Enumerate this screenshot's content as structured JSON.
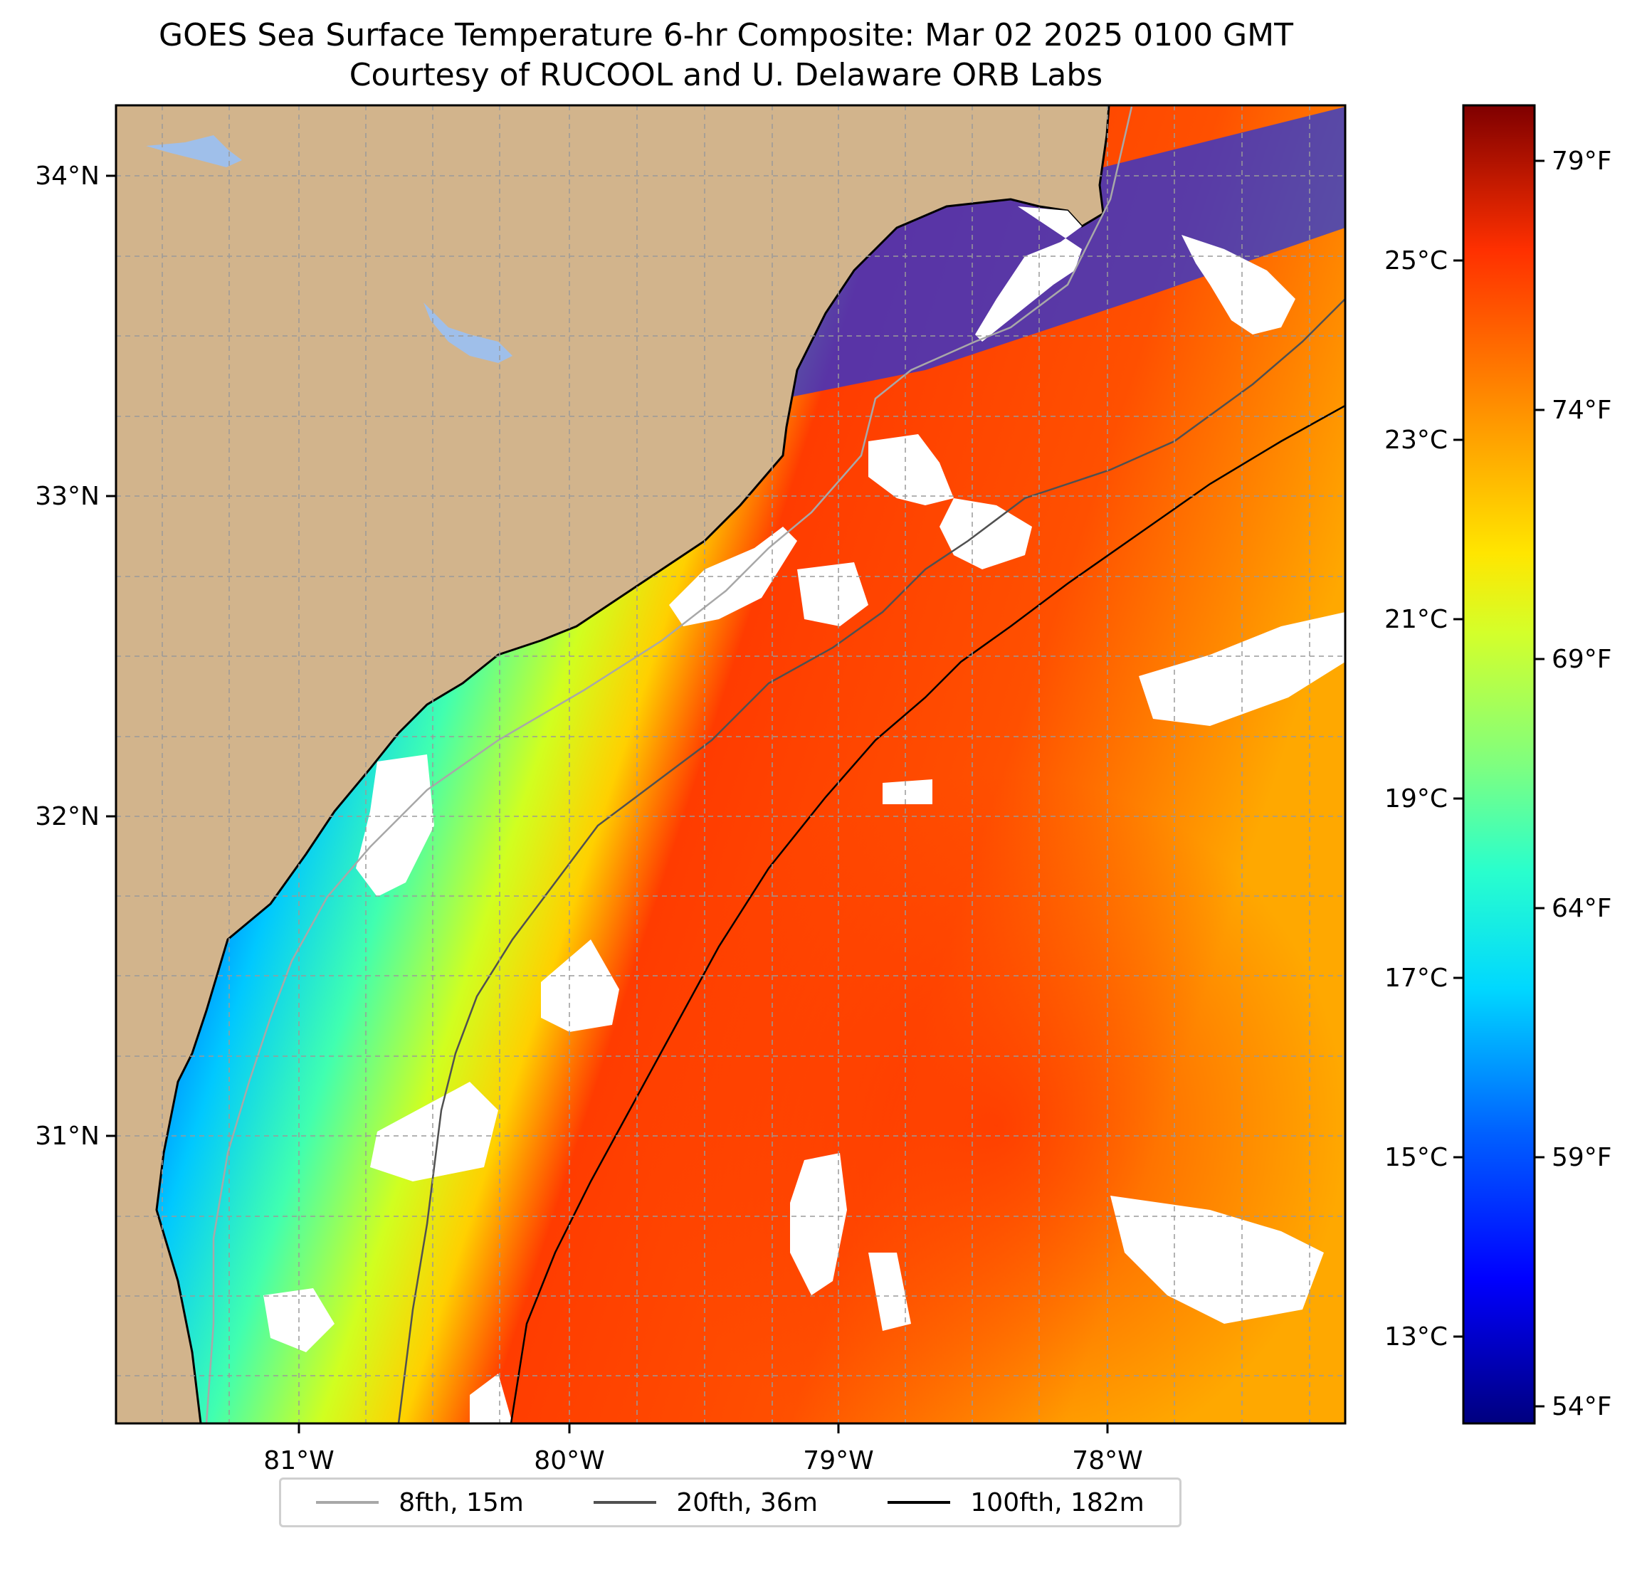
{
  "title": {
    "line1": "GOES Sea Surface Temperature 6-hr Composite: Mar 02 2025 0100 GMT",
    "line2": "Courtesy of RUCOOL and U. Delaware ORB Labs"
  },
  "map": {
    "lon_ticks": [
      "81°W",
      "80°W",
      "79°W",
      "78°W"
    ],
    "lat_ticks": [
      "34°N",
      "33°N",
      "32°N",
      "31°N"
    ],
    "land_color": "#d2b48c",
    "water_color": "#9fbfea",
    "gridlines": "dashed"
  },
  "colorbar": {
    "celsius_ticks": [
      "25°C",
      "23°C",
      "21°C",
      "19°C",
      "17°C",
      "15°C",
      "13°C"
    ],
    "fahrenheit_ticks": [
      "79°F",
      "74°F",
      "69°F",
      "64°F",
      "59°F",
      "54°F"
    ],
    "colormap": "jet"
  },
  "legend": [
    {
      "label": "8fth, 15m",
      "color": "#a8a8a8"
    },
    {
      "label": "20fth, 36m",
      "color": "#505050"
    },
    {
      "label": "100fth, 182m",
      "color": "#000000"
    }
  ]
}
